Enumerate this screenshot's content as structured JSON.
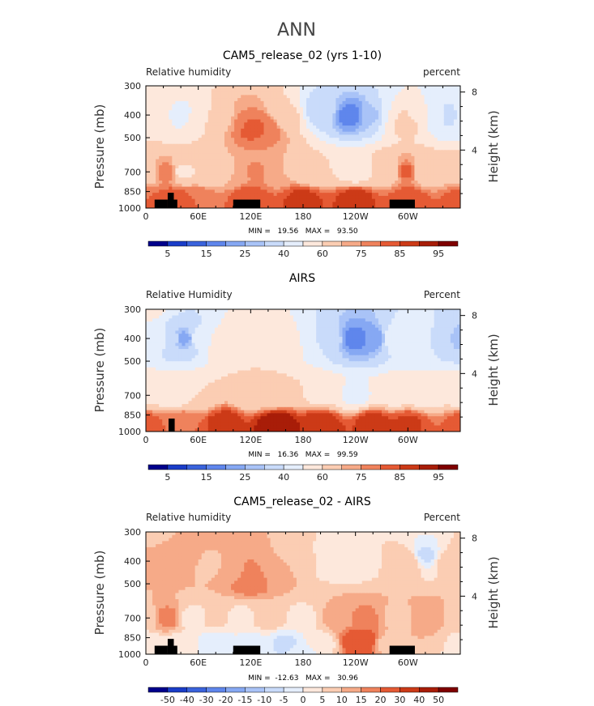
{
  "figure_title": "ANN",
  "chart_data": [
    {
      "type": "heatmap",
      "title": "CAM5_release_02 (yrs 1-10)",
      "field_label": "Relative humidity",
      "units_label": "percent",
      "ylabel": "Pressure (mb)",
      "ylabel_right": "Height (km)",
      "x_ticks": [
        "0",
        "60E",
        "120E",
        "180",
        "120W",
        "60W"
      ],
      "x_tick_values": [
        0,
        60,
        120,
        180,
        240,
        300
      ],
      "xlim": [
        0,
        360
      ],
      "y_ticks": [
        300,
        400,
        500,
        700,
        850,
        1000
      ],
      "ylim": [
        1000,
        300
      ],
      "height_ticks": [
        4,
        8
      ],
      "stats_text": "MIN =   19.56   MAX =   93.50",
      "min": 19.56,
      "max": 93.5,
      "colorbar_labels": [
        "5",
        "15",
        "25",
        "40",
        "60",
        "75",
        "85",
        "95"
      ],
      "colorbar_levels": [
        5,
        10,
        15,
        20,
        25,
        30,
        40,
        50,
        60,
        70,
        75,
        80,
        85,
        90,
        95
      ],
      "colorbar_colors": [
        "#00008c",
        "#1a3dc8",
        "#3a63dc",
        "#5f86ec",
        "#86a8f3",
        "#a9c3f7",
        "#c9dbfa",
        "#e5eefc",
        "#fde8dc",
        "#fbcdb3",
        "#f6aa88",
        "#ef825c",
        "#e55a34",
        "#cc3a17",
        "#a81d08",
        "#7f0000"
      ],
      "anchors": [
        {
          "lon": 0,
          "p": 300,
          "value": 55
        },
        {
          "lon": 12,
          "p": 400,
          "value": 58
        },
        {
          "lon": 20,
          "p": 400,
          "value": 60
        },
        {
          "lon": 35,
          "p": 400,
          "value": 42
        },
        {
          "lon": 50,
          "p": 400,
          "value": 50
        },
        {
          "lon": 65,
          "p": 420,
          "value": 60
        },
        {
          "lon": 90,
          "p": 420,
          "value": 66
        },
        {
          "lon": 108,
          "p": 430,
          "value": 76
        },
        {
          "lon": 118,
          "p": 450,
          "value": 83
        },
        {
          "lon": 135,
          "p": 450,
          "value": 80
        },
        {
          "lon": 160,
          "p": 400,
          "value": 62
        },
        {
          "lon": 200,
          "p": 380,
          "value": 35
        },
        {
          "lon": 235,
          "p": 400,
          "value": 17
        },
        {
          "lon": 258,
          "p": 400,
          "value": 28
        },
        {
          "lon": 280,
          "p": 400,
          "value": 50
        },
        {
          "lon": 296,
          "p": 420,
          "value": 70
        },
        {
          "lon": 310,
          "p": 400,
          "value": 55
        },
        {
          "lon": 335,
          "p": 400,
          "value": 42
        },
        {
          "lon": 350,
          "p": 400,
          "value": 35
        },
        {
          "lon": 360,
          "p": 400,
          "value": 48
        },
        {
          "lon": 0,
          "p": 700,
          "value": 62
        },
        {
          "lon": 25,
          "p": 700,
          "value": 80
        },
        {
          "lon": 40,
          "p": 700,
          "value": 58
        },
        {
          "lon": 70,
          "p": 700,
          "value": 60
        },
        {
          "lon": 100,
          "p": 700,
          "value": 70
        },
        {
          "lon": 128,
          "p": 700,
          "value": 76
        },
        {
          "lon": 150,
          "p": 700,
          "value": 70
        },
        {
          "lon": 190,
          "p": 700,
          "value": 60
        },
        {
          "lon": 240,
          "p": 700,
          "value": 56
        },
        {
          "lon": 282,
          "p": 700,
          "value": 62
        },
        {
          "lon": 296,
          "p": 700,
          "value": 82
        },
        {
          "lon": 320,
          "p": 700,
          "value": 62
        },
        {
          "lon": 360,
          "p": 700,
          "value": 64
        },
        {
          "lon": 0,
          "p": 920,
          "value": 80
        },
        {
          "lon": 30,
          "p": 920,
          "value": 85
        },
        {
          "lon": 60,
          "p": 920,
          "value": 80
        },
        {
          "lon": 120,
          "p": 920,
          "value": 85
        },
        {
          "lon": 180,
          "p": 920,
          "value": 87
        },
        {
          "lon": 240,
          "p": 920,
          "value": 88
        },
        {
          "lon": 300,
          "p": 920,
          "value": 85
        },
        {
          "lon": 360,
          "p": 920,
          "value": 82
        }
      ],
      "topography": [
        {
          "lon0": 10,
          "lon1": 25,
          "p_top": 920
        },
        {
          "lon0": 25,
          "lon1": 32,
          "p_top": 860
        },
        {
          "lon0": 32,
          "lon1": 36,
          "p_top": 920
        },
        {
          "lon0": 100,
          "lon1": 131,
          "p_top": 920
        },
        {
          "lon0": 279,
          "lon1": 308,
          "p_top": 920
        }
      ]
    },
    {
      "type": "heatmap",
      "title": "AIRS",
      "field_label": "Relative Humidity",
      "units_label": "Percent",
      "ylabel": "Pressure (mb)",
      "ylabel_right": "Height (km)",
      "x_ticks": [
        "0",
        "60E",
        "120E",
        "180",
        "120W",
        "60W"
      ],
      "x_tick_values": [
        0,
        60,
        120,
        180,
        240,
        300
      ],
      "xlim": [
        0,
        360
      ],
      "y_ticks": [
        300,
        400,
        500,
        700,
        850,
        1000
      ],
      "ylim": [
        1000,
        300
      ],
      "height_ticks": [
        4,
        8
      ],
      "stats_text": "MIN =   16.36   MAX =   99.59",
      "min": 16.36,
      "max": 99.59,
      "colorbar_labels": [
        "5",
        "15",
        "25",
        "40",
        "60",
        "75",
        "85",
        "95"
      ],
      "colorbar_levels": [
        5,
        10,
        15,
        20,
        25,
        30,
        40,
        50,
        60,
        70,
        75,
        80,
        85,
        90,
        95
      ],
      "colorbar_colors": [
        "#00008c",
        "#1a3dc8",
        "#3a63dc",
        "#5f86ec",
        "#86a8f3",
        "#a9c3f7",
        "#c9dbfa",
        "#e5eefc",
        "#fde8dc",
        "#fbcdb3",
        "#f6aa88",
        "#ef825c",
        "#e55a34",
        "#cc3a17",
        "#a81d08",
        "#7f0000"
      ],
      "anchors": [
        {
          "lon": 0,
          "p": 300,
          "value": 52
        },
        {
          "lon": 15,
          "p": 400,
          "value": 48
        },
        {
          "lon": 30,
          "p": 400,
          "value": 32
        },
        {
          "lon": 45,
          "p": 400,
          "value": 22
        },
        {
          "lon": 60,
          "p": 400,
          "value": 46
        },
        {
          "lon": 90,
          "p": 420,
          "value": 58
        },
        {
          "lon": 120,
          "p": 420,
          "value": 60
        },
        {
          "lon": 150,
          "p": 420,
          "value": 58
        },
        {
          "lon": 180,
          "p": 420,
          "value": 50
        },
        {
          "lon": 210,
          "p": 400,
          "value": 35
        },
        {
          "lon": 240,
          "p": 400,
          "value": 17
        },
        {
          "lon": 262,
          "p": 400,
          "value": 22
        },
        {
          "lon": 285,
          "p": 400,
          "value": 48
        },
        {
          "lon": 310,
          "p": 400,
          "value": 50
        },
        {
          "lon": 335,
          "p": 400,
          "value": 38
        },
        {
          "lon": 360,
          "p": 400,
          "value": 28
        },
        {
          "lon": 0,
          "p": 700,
          "value": 58
        },
        {
          "lon": 30,
          "p": 700,
          "value": 55
        },
        {
          "lon": 60,
          "p": 700,
          "value": 60
        },
        {
          "lon": 120,
          "p": 700,
          "value": 64
        },
        {
          "lon": 150,
          "p": 700,
          "value": 62
        },
        {
          "lon": 200,
          "p": 700,
          "value": 58
        },
        {
          "lon": 240,
          "p": 700,
          "value": 48
        },
        {
          "lon": 285,
          "p": 700,
          "value": 56
        },
        {
          "lon": 320,
          "p": 700,
          "value": 55
        },
        {
          "lon": 360,
          "p": 700,
          "value": 56
        },
        {
          "lon": 0,
          "p": 920,
          "value": 82
        },
        {
          "lon": 40,
          "p": 920,
          "value": 80
        },
        {
          "lon": 90,
          "p": 920,
          "value": 88
        },
        {
          "lon": 150,
          "p": 920,
          "value": 95
        },
        {
          "lon": 200,
          "p": 920,
          "value": 90
        },
        {
          "lon": 260,
          "p": 920,
          "value": 88
        },
        {
          "lon": 300,
          "p": 920,
          "value": 86
        },
        {
          "lon": 360,
          "p": 920,
          "value": 82
        }
      ],
      "topography": [
        {
          "lon0": 26,
          "lon1": 33,
          "p_top": 880
        }
      ]
    },
    {
      "type": "heatmap",
      "title": "CAM5_release_02 - AIRS",
      "field_label": "Relative humidity",
      "units_label": "Percent",
      "ylabel": "Pressure (mb)",
      "ylabel_right": "Height (km)",
      "x_ticks": [
        "0",
        "60E",
        "120E",
        "180",
        "120W",
        "60W"
      ],
      "x_tick_values": [
        0,
        60,
        120,
        180,
        240,
        300
      ],
      "xlim": [
        0,
        360
      ],
      "y_ticks": [
        300,
        400,
        500,
        700,
        850,
        1000
      ],
      "ylim": [
        1000,
        300
      ],
      "height_ticks": [
        4,
        8
      ],
      "stats_text": "MIN =  -12.63   MAX =   30.96",
      "min": -12.63,
      "max": 30.96,
      "colorbar_labels": [
        "-50",
        "-40",
        "-30",
        "-20",
        "-15",
        "-10",
        "-5",
        "0",
        "5",
        "10",
        "15",
        "20",
        "30",
        "40",
        "50"
      ],
      "colorbar_levels": [
        -50,
        -40,
        -30,
        -20,
        -15,
        -10,
        -5,
        0,
        5,
        10,
        15,
        20,
        30,
        40,
        50
      ],
      "colorbar_colors": [
        "#00008c",
        "#1a3dc8",
        "#3a63dc",
        "#5f86ec",
        "#86a8f3",
        "#a9c3f7",
        "#c9dbfa",
        "#e5eefc",
        "#fde8dc",
        "#fbcdb3",
        "#f6aa88",
        "#ef825c",
        "#e55a34",
        "#cc3a17",
        "#a81d08",
        "#7f0000"
      ],
      "anchors": [
        {
          "lon": 0,
          "p": 300,
          "value": 8
        },
        {
          "lon": 20,
          "p": 400,
          "value": 12
        },
        {
          "lon": 45,
          "p": 400,
          "value": 14
        },
        {
          "lon": 70,
          "p": 420,
          "value": 8
        },
        {
          "lon": 100,
          "p": 450,
          "value": 14
        },
        {
          "lon": 120,
          "p": 480,
          "value": 20
        },
        {
          "lon": 150,
          "p": 450,
          "value": 12
        },
        {
          "lon": 180,
          "p": 400,
          "value": 6
        },
        {
          "lon": 210,
          "p": 400,
          "value": 3
        },
        {
          "lon": 240,
          "p": 400,
          "value": 2
        },
        {
          "lon": 270,
          "p": 400,
          "value": 5
        },
        {
          "lon": 300,
          "p": 400,
          "value": 10
        },
        {
          "lon": 320,
          "p": 380,
          "value": -6
        },
        {
          "lon": 345,
          "p": 400,
          "value": 6
        },
        {
          "lon": 360,
          "p": 400,
          "value": 10
        },
        {
          "lon": 0,
          "p": 700,
          "value": 6
        },
        {
          "lon": 25,
          "p": 700,
          "value": 18
        },
        {
          "lon": 50,
          "p": 700,
          "value": 3
        },
        {
          "lon": 80,
          "p": 700,
          "value": 6
        },
        {
          "lon": 110,
          "p": 700,
          "value": 4
        },
        {
          "lon": 140,
          "p": 700,
          "value": 8
        },
        {
          "lon": 180,
          "p": 700,
          "value": 4
        },
        {
          "lon": 220,
          "p": 700,
          "value": 12
        },
        {
          "lon": 250,
          "p": 700,
          "value": 16
        },
        {
          "lon": 290,
          "p": 700,
          "value": 8
        },
        {
          "lon": 320,
          "p": 700,
          "value": 14
        },
        {
          "lon": 360,
          "p": 700,
          "value": 8
        },
        {
          "lon": 0,
          "p": 900,
          "value": 2
        },
        {
          "lon": 40,
          "p": 900,
          "value": 3
        },
        {
          "lon": 80,
          "p": 900,
          "value": -4
        },
        {
          "lon": 120,
          "p": 900,
          "value": -2
        },
        {
          "lon": 160,
          "p": 900,
          "value": -6
        },
        {
          "lon": 200,
          "p": 900,
          "value": 3
        },
        {
          "lon": 245,
          "p": 880,
          "value": 28
        },
        {
          "lon": 280,
          "p": 900,
          "value": 8
        },
        {
          "lon": 320,
          "p": 900,
          "value": 10
        },
        {
          "lon": 360,
          "p": 900,
          "value": 4
        },
        {
          "lon": 0,
          "p": 1000,
          "value": 2
        },
        {
          "lon": 180,
          "p": 1000,
          "value": -2
        },
        {
          "lon": 360,
          "p": 1000,
          "value": 2
        }
      ],
      "topography": [
        {
          "lon0": 10,
          "lon1": 25,
          "p_top": 920
        },
        {
          "lon0": 25,
          "lon1": 32,
          "p_top": 860
        },
        {
          "lon0": 32,
          "lon1": 36,
          "p_top": 920
        },
        {
          "lon0": 100,
          "lon1": 131,
          "p_top": 920
        },
        {
          "lon0": 279,
          "lon1": 308,
          "p_top": 920
        }
      ]
    }
  ]
}
